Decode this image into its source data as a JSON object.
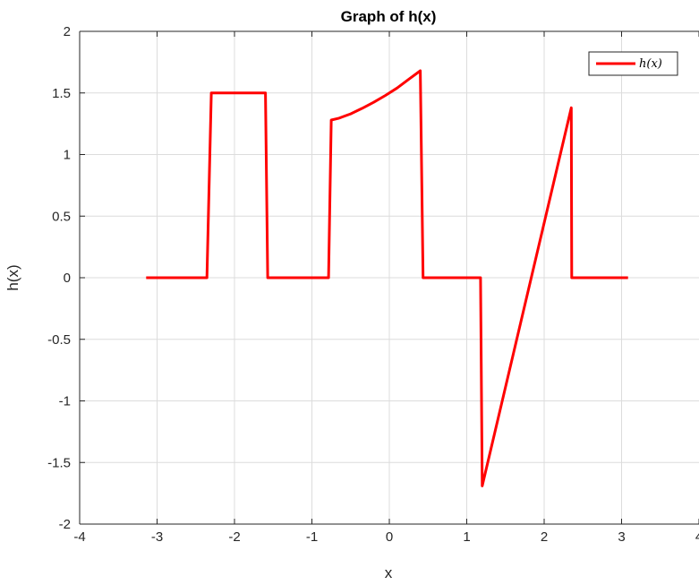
{
  "chart_data": {
    "type": "line",
    "title": "Graph of h(x)",
    "xlabel": "x",
    "ylabel": "h(x)",
    "xlim": [
      -4,
      4
    ],
    "ylim": [
      -2,
      2
    ],
    "x_ticks": [
      -4,
      -3,
      -2,
      -1,
      0,
      1,
      2,
      3,
      4
    ],
    "y_ticks": [
      -2,
      -1.5,
      -1,
      -0.5,
      0,
      0.5,
      1,
      1.5,
      2
    ],
    "x_tick_labels": [
      "-4",
      "-3",
      "-2",
      "-1",
      "0",
      "1",
      "2",
      "3",
      "4"
    ],
    "y_tick_labels": [
      "-2",
      "-1.5",
      "-1",
      "-0.5",
      "0",
      "0.5",
      "1",
      "1.5",
      "2"
    ],
    "grid": true,
    "legend_position": "top-right",
    "series": [
      {
        "name": "h(x)",
        "color": "#ff0000",
        "x": [
          -3.1416,
          -2.3562,
          -2.3,
          -1.6,
          -1.5708,
          -0.7854,
          -0.75,
          -0.65,
          -0.5,
          -0.35,
          -0.2,
          -0.05,
          0.1,
          0.25,
          0.4,
          0.4363,
          1.1781,
          1.2,
          2.35,
          2.3562,
          3.0833
        ],
        "y": [
          0,
          0,
          1.5,
          1.5,
          0,
          0,
          1.28,
          1.295,
          1.33,
          1.375,
          1.425,
          1.48,
          1.54,
          1.61,
          1.68,
          0,
          0,
          -1.69,
          1.38,
          0,
          0
        ]
      }
    ]
  },
  "colors": {
    "axes": "#262626",
    "grid": "#dcdcdc",
    "line": "#ff0000",
    "background": "#ffffff"
  }
}
